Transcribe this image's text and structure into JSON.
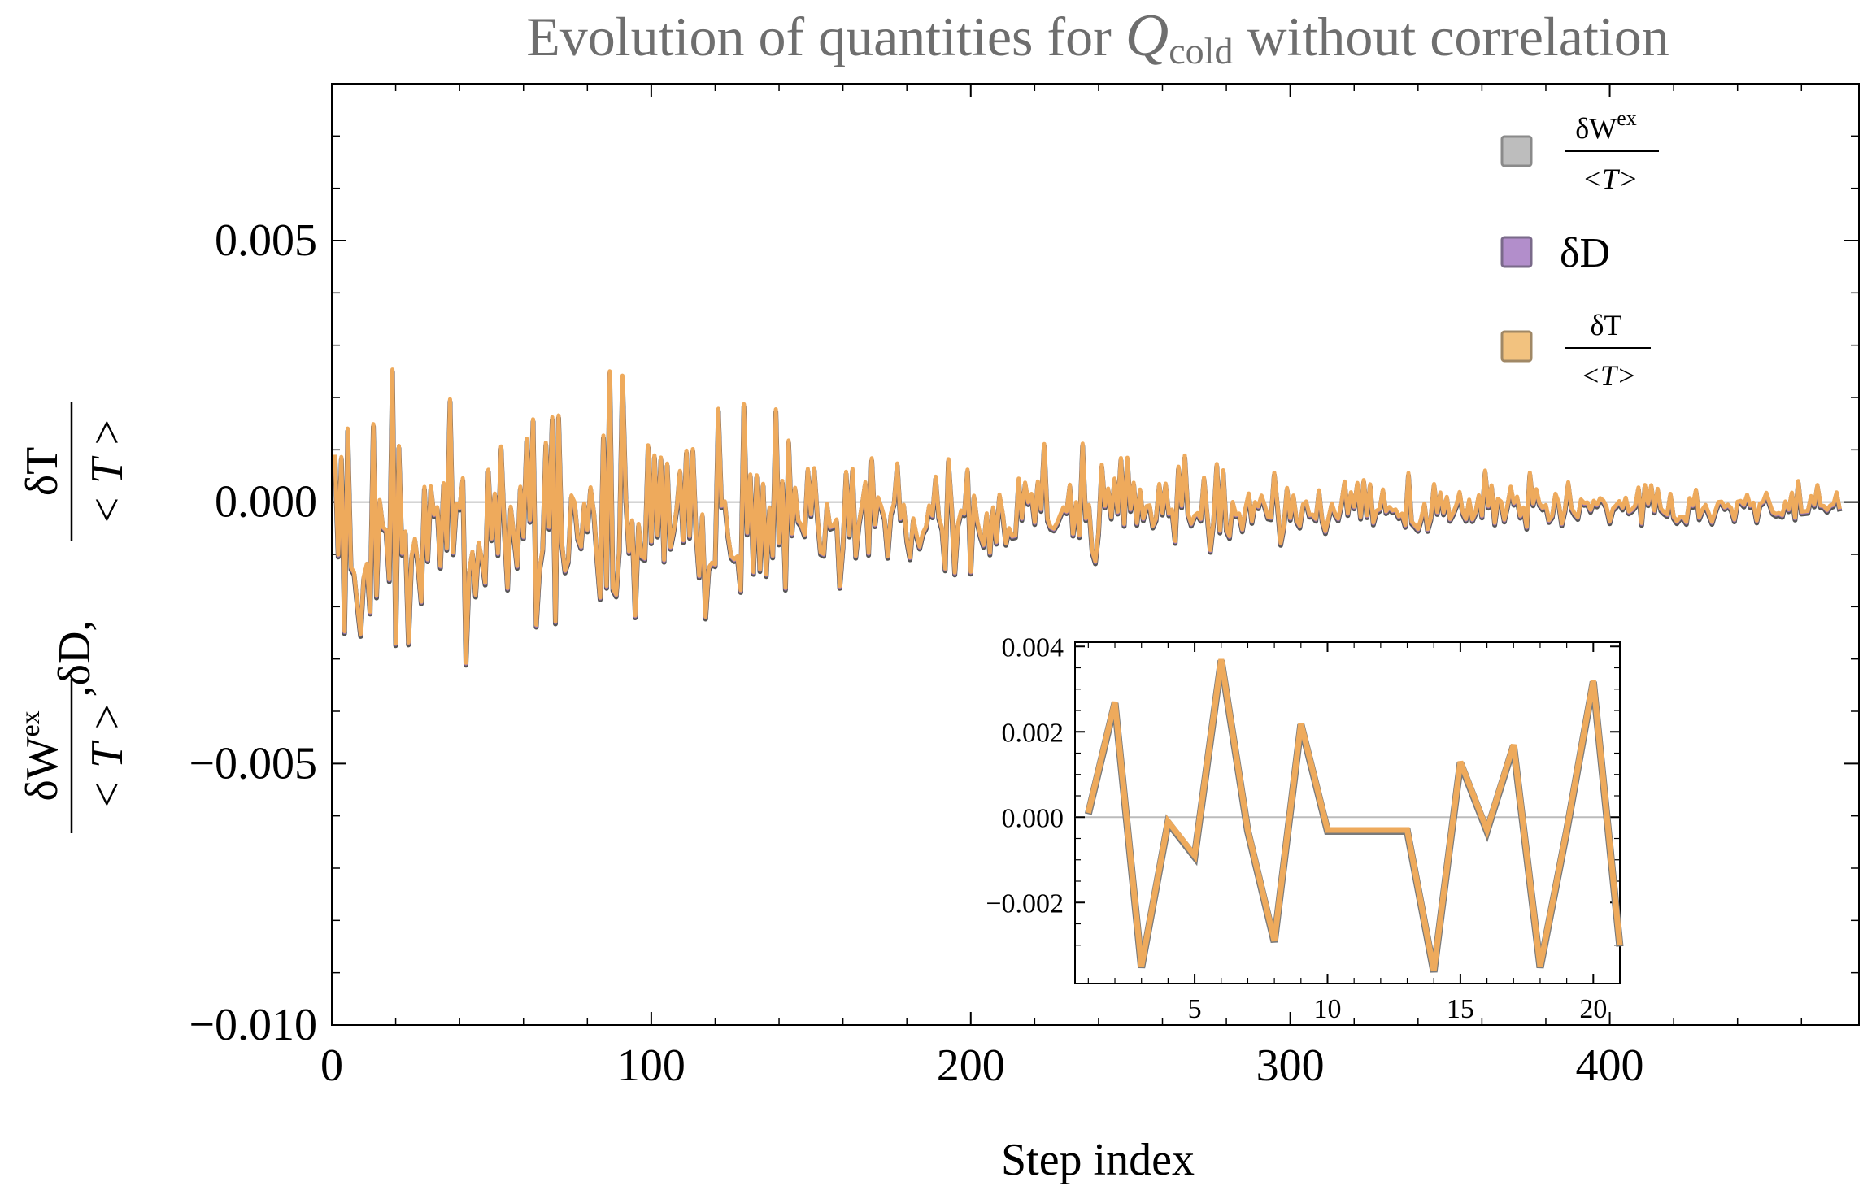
{
  "chart_data": [
    {
      "type": "line",
      "title_prefix": "Evolution of quantities for ",
      "title_symbol": "Q",
      "title_subscript": "cold",
      "title_suffix": " without correlation",
      "xlabel": "Step index",
      "ylabel": {
        "term1_num": "δW",
        "term1_sup": "ex",
        "term1_den": "< T >",
        "sep1": ",",
        "term2": "δD,",
        "term3_num": "δT",
        "term3_den": "< T >"
      },
      "xlim": [
        0,
        478
      ],
      "ylim": [
        -0.01,
        0.008
      ],
      "x_ticks": [
        0,
        100,
        200,
        300,
        400
      ],
      "x_tick_labels": [
        "0",
        "100",
        "200",
        "300",
        "400"
      ],
      "y_ticks": [
        -0.01,
        -0.005,
        0.0,
        0.005
      ],
      "y_tick_labels": [
        "−0.010",
        "−0.005",
        "0.000",
        "0.005"
      ],
      "legend": [
        {
          "symbol": "δW",
          "sup": "ex",
          "den": "<T>",
          "color": "#bdbdbd",
          "border": "#8a8a8a"
        },
        {
          "symbol": "δD",
          "color": "#b28ecb",
          "border": "#7a6a8a"
        },
        {
          "symbol": "δT",
          "den": "<T>",
          "color": "#f2c27f",
          "border": "#a08866"
        }
      ],
      "legend_position": "top-right",
      "series": [
        {
          "name": "δWex/<T>",
          "color": "#555555"
        },
        {
          "name": "δD",
          "color": "#9b74b8"
        },
        {
          "name": "δT/<T>",
          "color": "#eeaa5c"
        }
      ],
      "envelope": {
        "decay_start": 0.0032,
        "decay_end": 0.0004
      }
    },
    {
      "type": "line",
      "title": "",
      "xlim": [
        0.5,
        21
      ],
      "ylim": [
        -0.0039,
        0.0041
      ],
      "x_ticks": [
        5,
        10,
        15,
        20
      ],
      "x_tick_labels": [
        "5",
        "10",
        "15",
        "20"
      ],
      "y_ticks": [
        -0.002,
        0.0,
        0.002,
        0.004
      ],
      "y_tick_labels": [
        "−0.002",
        "0.000",
        "0.002",
        "0.004"
      ],
      "x": [
        1,
        2,
        3,
        4,
        5,
        6,
        7,
        8,
        9,
        10,
        11,
        12,
        13,
        14,
        15,
        16,
        17,
        18,
        19,
        20,
        21
      ],
      "values": [
        0.0001,
        0.0027,
        -0.0035,
        -0.0001,
        -0.0009,
        0.0037,
        -0.0003,
        -0.0029,
        0.0022,
        -0.0003,
        -0.0003,
        -0.0003,
        -0.0003,
        -0.0036,
        0.0013,
        -0.0003,
        0.0017,
        -0.0035,
        -0.0003,
        0.0032,
        -0.003
      ],
      "color": "#eeaa5c",
      "shadow_color": "#7a7a7a"
    }
  ]
}
